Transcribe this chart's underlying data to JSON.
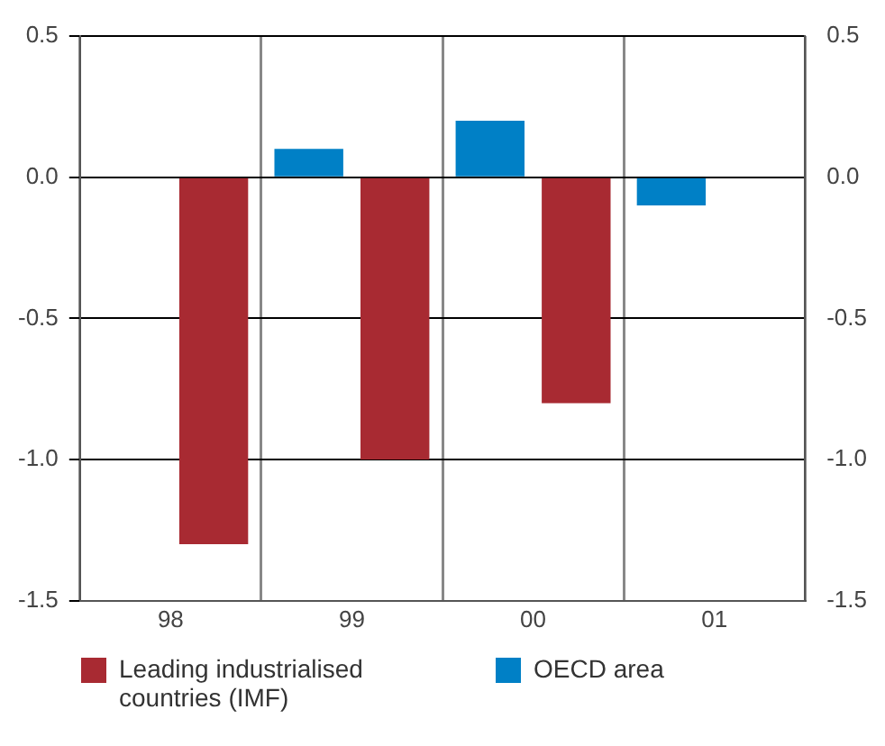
{
  "chart_data": {
    "type": "bar",
    "categories": [
      "98",
      "99",
      "00",
      "01"
    ],
    "series": [
      {
        "name": "Leading industrialised countries (IMF)",
        "color": "#a82a32",
        "values": [
          -1.3,
          -1.0,
          -0.8,
          null
        ]
      },
      {
        "name": "OECD area",
        "color": "#0080c6",
        "values": [
          null,
          0.1,
          0.2,
          -0.1
        ]
      }
    ],
    "ylim": [
      -1.5,
      0.5
    ],
    "yticks": [
      {
        "value": -1.5,
        "label": "-1.5"
      },
      {
        "value": -1.0,
        "label": "-1.0"
      },
      {
        "value": -0.5,
        "label": "-0.5"
      },
      {
        "value": 0,
        "label": "0.0"
      },
      {
        "value": 0.5,
        "label": "0.5"
      }
    ],
    "y2lim": [
      -1.5,
      0.5
    ],
    "y2ticks": [
      {
        "value": -1.5,
        "label": "-1.5"
      },
      {
        "value": -1.0,
        "label": "-1.0"
      },
      {
        "value": -0.5,
        "label": "-0.5"
      },
      {
        "value": 0,
        "label": "0.0"
      },
      {
        "value": 0.5,
        "label": "0.5"
      }
    ],
    "grid": true,
    "legend": "bottom"
  }
}
